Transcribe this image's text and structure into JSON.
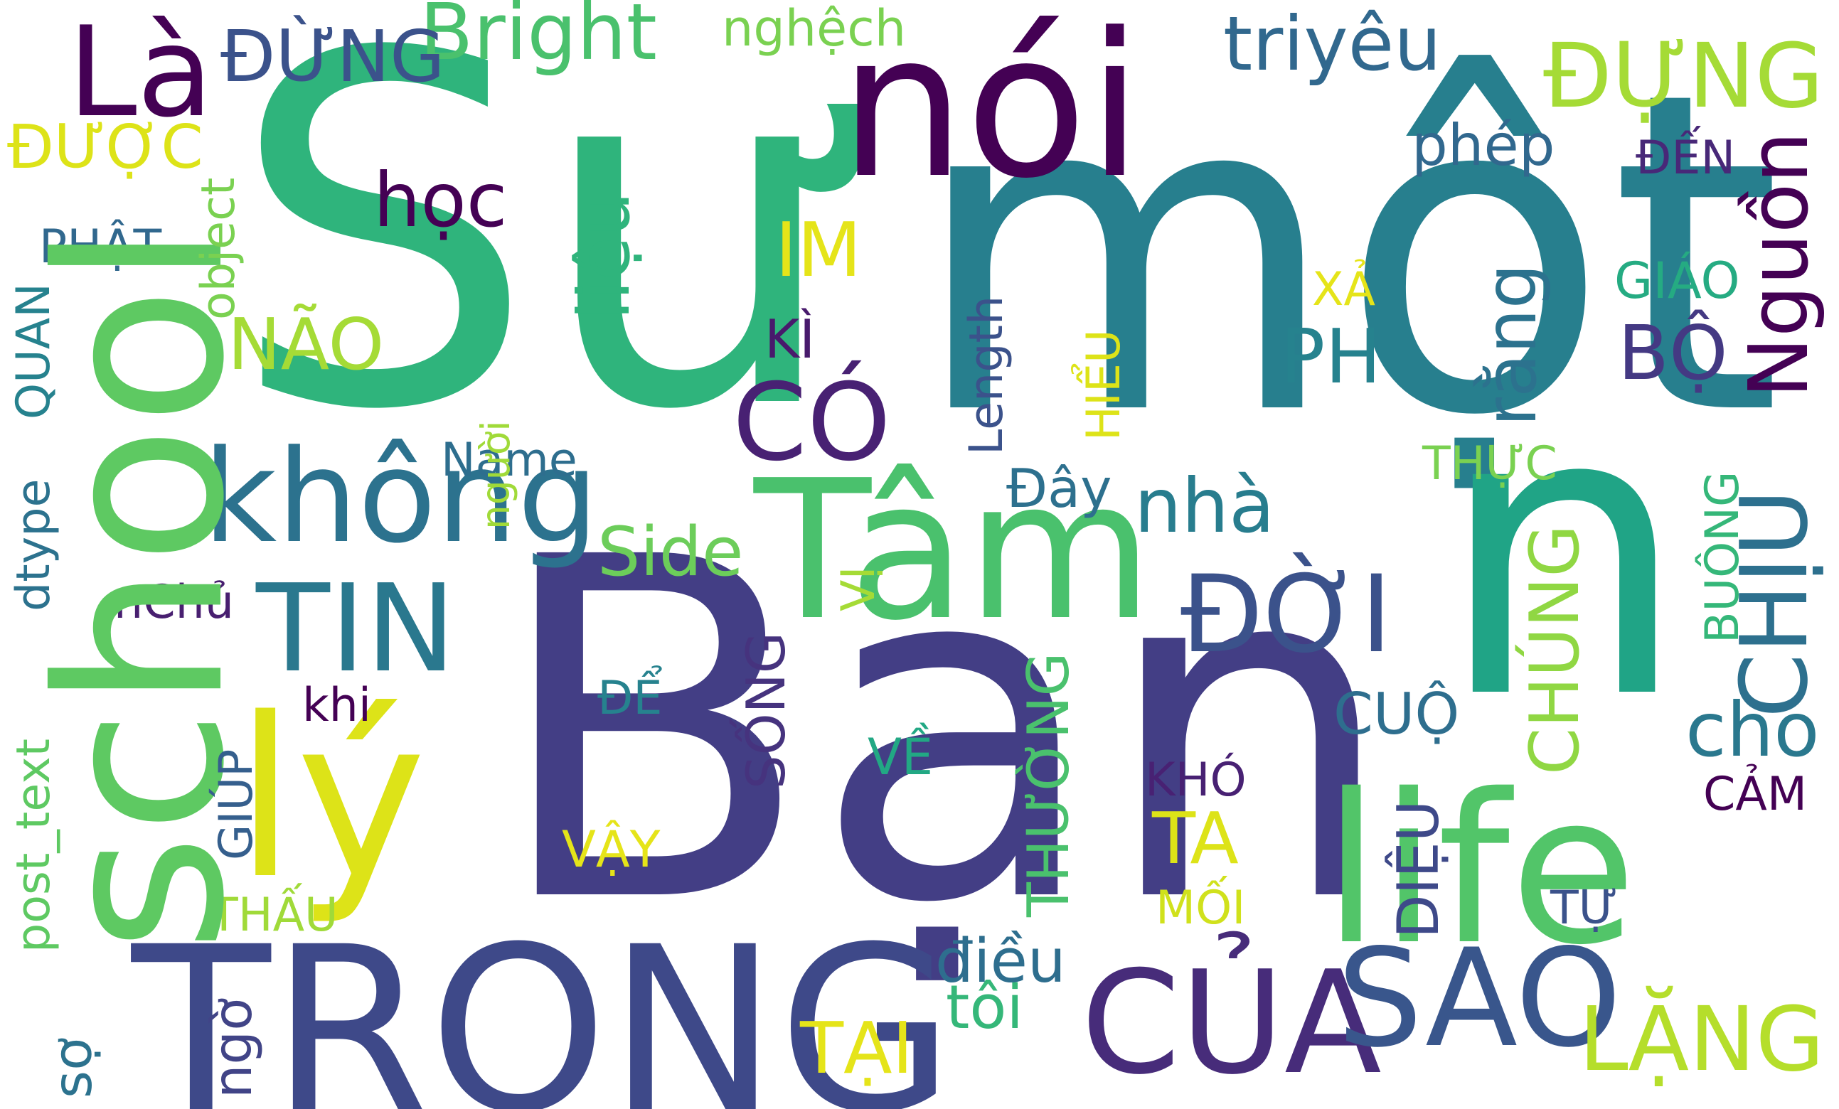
{
  "words": [
    {
      "text": "Sư",
      "color": "#2fb47c"
    },
    {
      "text": "một",
      "color": "#277f8e"
    },
    {
      "text": "Bạn",
      "color": "#433e85"
    },
    {
      "text": "n",
      "color": "#20a486"
    },
    {
      "text": "nói",
      "color": "#440154"
    },
    {
      "text": "school",
      "color": "#5ec962"
    },
    {
      "text": "TRONG",
      "color": "#3e4989"
    },
    {
      "text": "Tâm",
      "color": "#4ac16d"
    },
    {
      "text": "life",
      "color": "#52c569"
    },
    {
      "text": "lý",
      "color": "#dde318"
    },
    {
      "text": "không",
      "color": "#2c728e"
    },
    {
      "text": "CỦA",
      "color": "#472c7a"
    },
    {
      "text": "SAO",
      "color": "#39568c"
    },
    {
      "text": "Là",
      "color": "#440154"
    },
    {
      "text": "ĐỜI",
      "color": "#3b528b"
    },
    {
      "text": "TIN",
      "color": "#2a788e"
    },
    {
      "text": "CÓ",
      "color": "#482173"
    },
    {
      "text": "LẶNG",
      "color": "#b5de2b"
    },
    {
      "text": "Bright",
      "color": "#4ac16d"
    },
    {
      "text": "ĐỰNG",
      "color": "#a5db36"
    },
    {
      "text": "triyêu",
      "color": "#31688e"
    },
    {
      "text": "ĐỪNG",
      "color": "#3b528b"
    },
    {
      "text": "học",
      "color": "#440154"
    },
    {
      "text": "CHỊU",
      "color": "#2d708e"
    },
    {
      "text": "Nguồn",
      "color": "#440154"
    },
    {
      "text": "liệu",
      "color": "#2fb47c"
    },
    {
      "text": "Side",
      "color": "#6ccd5a"
    },
    {
      "text": "nhà",
      "color": "#287d8e"
    },
    {
      "text": "cho",
      "color": "#2a788e"
    },
    {
      "text": "PH",
      "color": "#26828e"
    },
    {
      "text": "rằng",
      "color": "#2c728e"
    },
    {
      "text": "BỘ",
      "color": "#443983"
    },
    {
      "text": "IM",
      "color": "#e5e419"
    },
    {
      "text": "NÃO",
      "color": "#a5db36"
    },
    {
      "text": "TA",
      "color": "#dde318"
    },
    {
      "text": "TẠI",
      "color": "#e5e419"
    },
    {
      "text": "tôi",
      "color": "#35b779"
    },
    {
      "text": "điều",
      "color": "#2e6e8e"
    },
    {
      "text": "CHÚNG",
      "color": "#90d743"
    },
    {
      "text": "ĐƯỢC",
      "color": "#dde318"
    },
    {
      "text": "phép",
      "color": "#31688e"
    },
    {
      "text": "nghệch",
      "color": "#7ad151"
    },
    {
      "text": "CUỘ",
      "color": "#2e6e8e"
    },
    {
      "text": "SỐNG",
      "color": "#46337e"
    },
    {
      "text": "THƯỜNG",
      "color": "#4ac16d"
    },
    {
      "text": "DIỆU",
      "color": "#3e4989"
    },
    {
      "text": "Đây",
      "color": "#2d708e"
    },
    {
      "text": "ĐẾN",
      "color": "#482878"
    },
    {
      "text": "GIÁO",
      "color": "#25ab82"
    },
    {
      "text": "Length",
      "color": "#3b528b"
    },
    {
      "text": "HIỂU",
      "color": "#dde318"
    },
    {
      "text": "KÌ",
      "color": "#481a6c"
    },
    {
      "text": "PHẬT",
      "color": "#31688e"
    },
    {
      "text": "object",
      "color": "#7ad151"
    },
    {
      "text": "VẬY",
      "color": "#e5e419"
    },
    {
      "text": "VỀ",
      "color": "#22a884"
    },
    {
      "text": "KHÓ",
      "color": "#482173"
    },
    {
      "text": "Name",
      "color": "#2e6e8e"
    },
    {
      "text": "nChủ",
      "color": "#481f70"
    },
    {
      "text": "khi",
      "color": "#440154"
    },
    {
      "text": "ĐỂ",
      "color": "#26828e"
    },
    {
      "text": "THẤU",
      "color": "#a0da39"
    },
    {
      "text": "MỐI",
      "color": "#d0e11c"
    },
    {
      "text": "CẢM",
      "color": "#440154"
    },
    {
      "text": "TỰ",
      "color": "#3b528b"
    },
    {
      "text": "XẢ",
      "color": "#e5e419"
    },
    {
      "text": "THỰC",
      "color": "#7ad151"
    },
    {
      "text": "VỊ",
      "color": "#a5db36"
    },
    {
      "text": "BUÔNG",
      "color": "#35b779"
    },
    {
      "text": "QUAN",
      "color": "#26828e"
    },
    {
      "text": "dtype",
      "color": "#2c728e"
    },
    {
      "text": "post_text",
      "color": "#5ec962"
    },
    {
      "text": "sợ",
      "color": "#2c728e"
    },
    {
      "text": "ngờ",
      "color": "#414487"
    },
    {
      "text": "GIÚP",
      "color": "#355f8d"
    },
    {
      "text": "người",
      "color": "#a0da39"
    }
  ]
}
